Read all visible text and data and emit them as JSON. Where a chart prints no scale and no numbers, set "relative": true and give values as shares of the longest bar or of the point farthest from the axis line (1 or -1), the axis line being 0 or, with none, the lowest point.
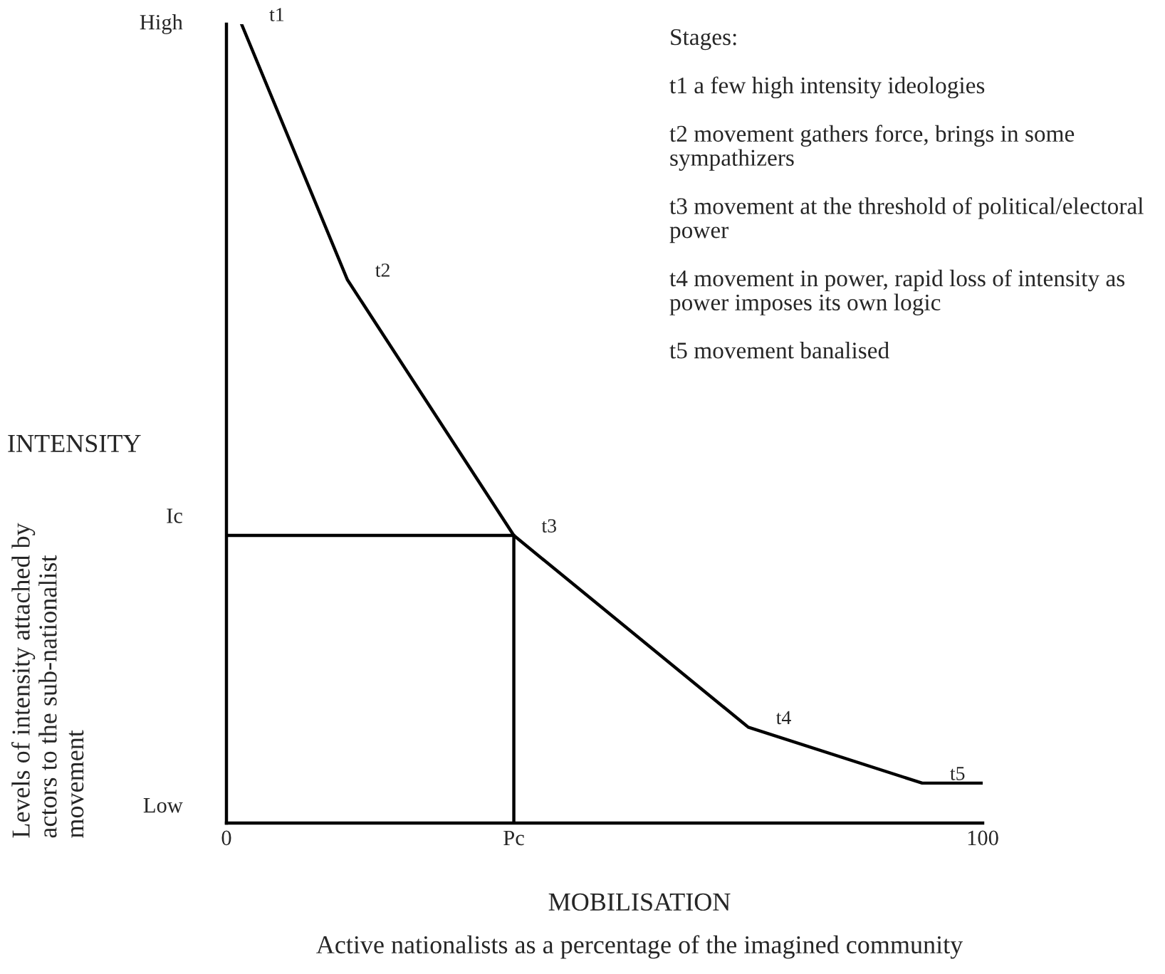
{
  "chart_data": {
    "type": "line",
    "xlabel": "MOBILISATION",
    "x": [
      2,
      16,
      38,
      69,
      92,
      100
    ],
    "series": [
      {
        "color": "#000000",
        "values": [
          1,
          0.68,
          0.36,
          0.12,
          0.05,
          0.05
        ]
      }
    ],
    "relative": true,
    "xlim": [
      0,
      100
    ],
    "xticks": [
      0,
      {
        "value": 38,
        "label": "Pc"
      },
      100
    ],
    "ref_lines": [
      {
        "axis": "y",
        "value": 0.36,
        "label": "Ic",
        "color": "#000000"
      },
      {
        "axis": "x",
        "value": 38,
        "color": "#000000"
      }
    ],
    "grid": false,
    "legend": false,
    "marker": "none",
    "line_style": "solid",
    "annotations": [
      "INTENSITY",
      "Active nationalists as a percentage of the imagined community",
      "High",
      "Low",
      "Levels of intensity attached by actors to the sub-nationalist movement",
      "Stages:",
      "t1 a few high intensity ideologies",
      "t2 movement gathers force, brings in some sympathizers",
      "t3 movement at the threshold of political/electoral power",
      "t4 movement in power, rapid loss of intensity as power imposes its own logic",
      "t5 movement banalised",
      {
        "text": "t1",
        "x": 2,
        "y": 1
      },
      {
        "text": "t2",
        "x": 16,
        "y": 0.68
      },
      {
        "text": "t3",
        "x": 38,
        "y": 0.36
      },
      {
        "text": "t4",
        "x": 69,
        "y": 0.12
      },
      {
        "text": "t5",
        "x": 92,
        "y": 0.05
      }
    ]
  }
}
